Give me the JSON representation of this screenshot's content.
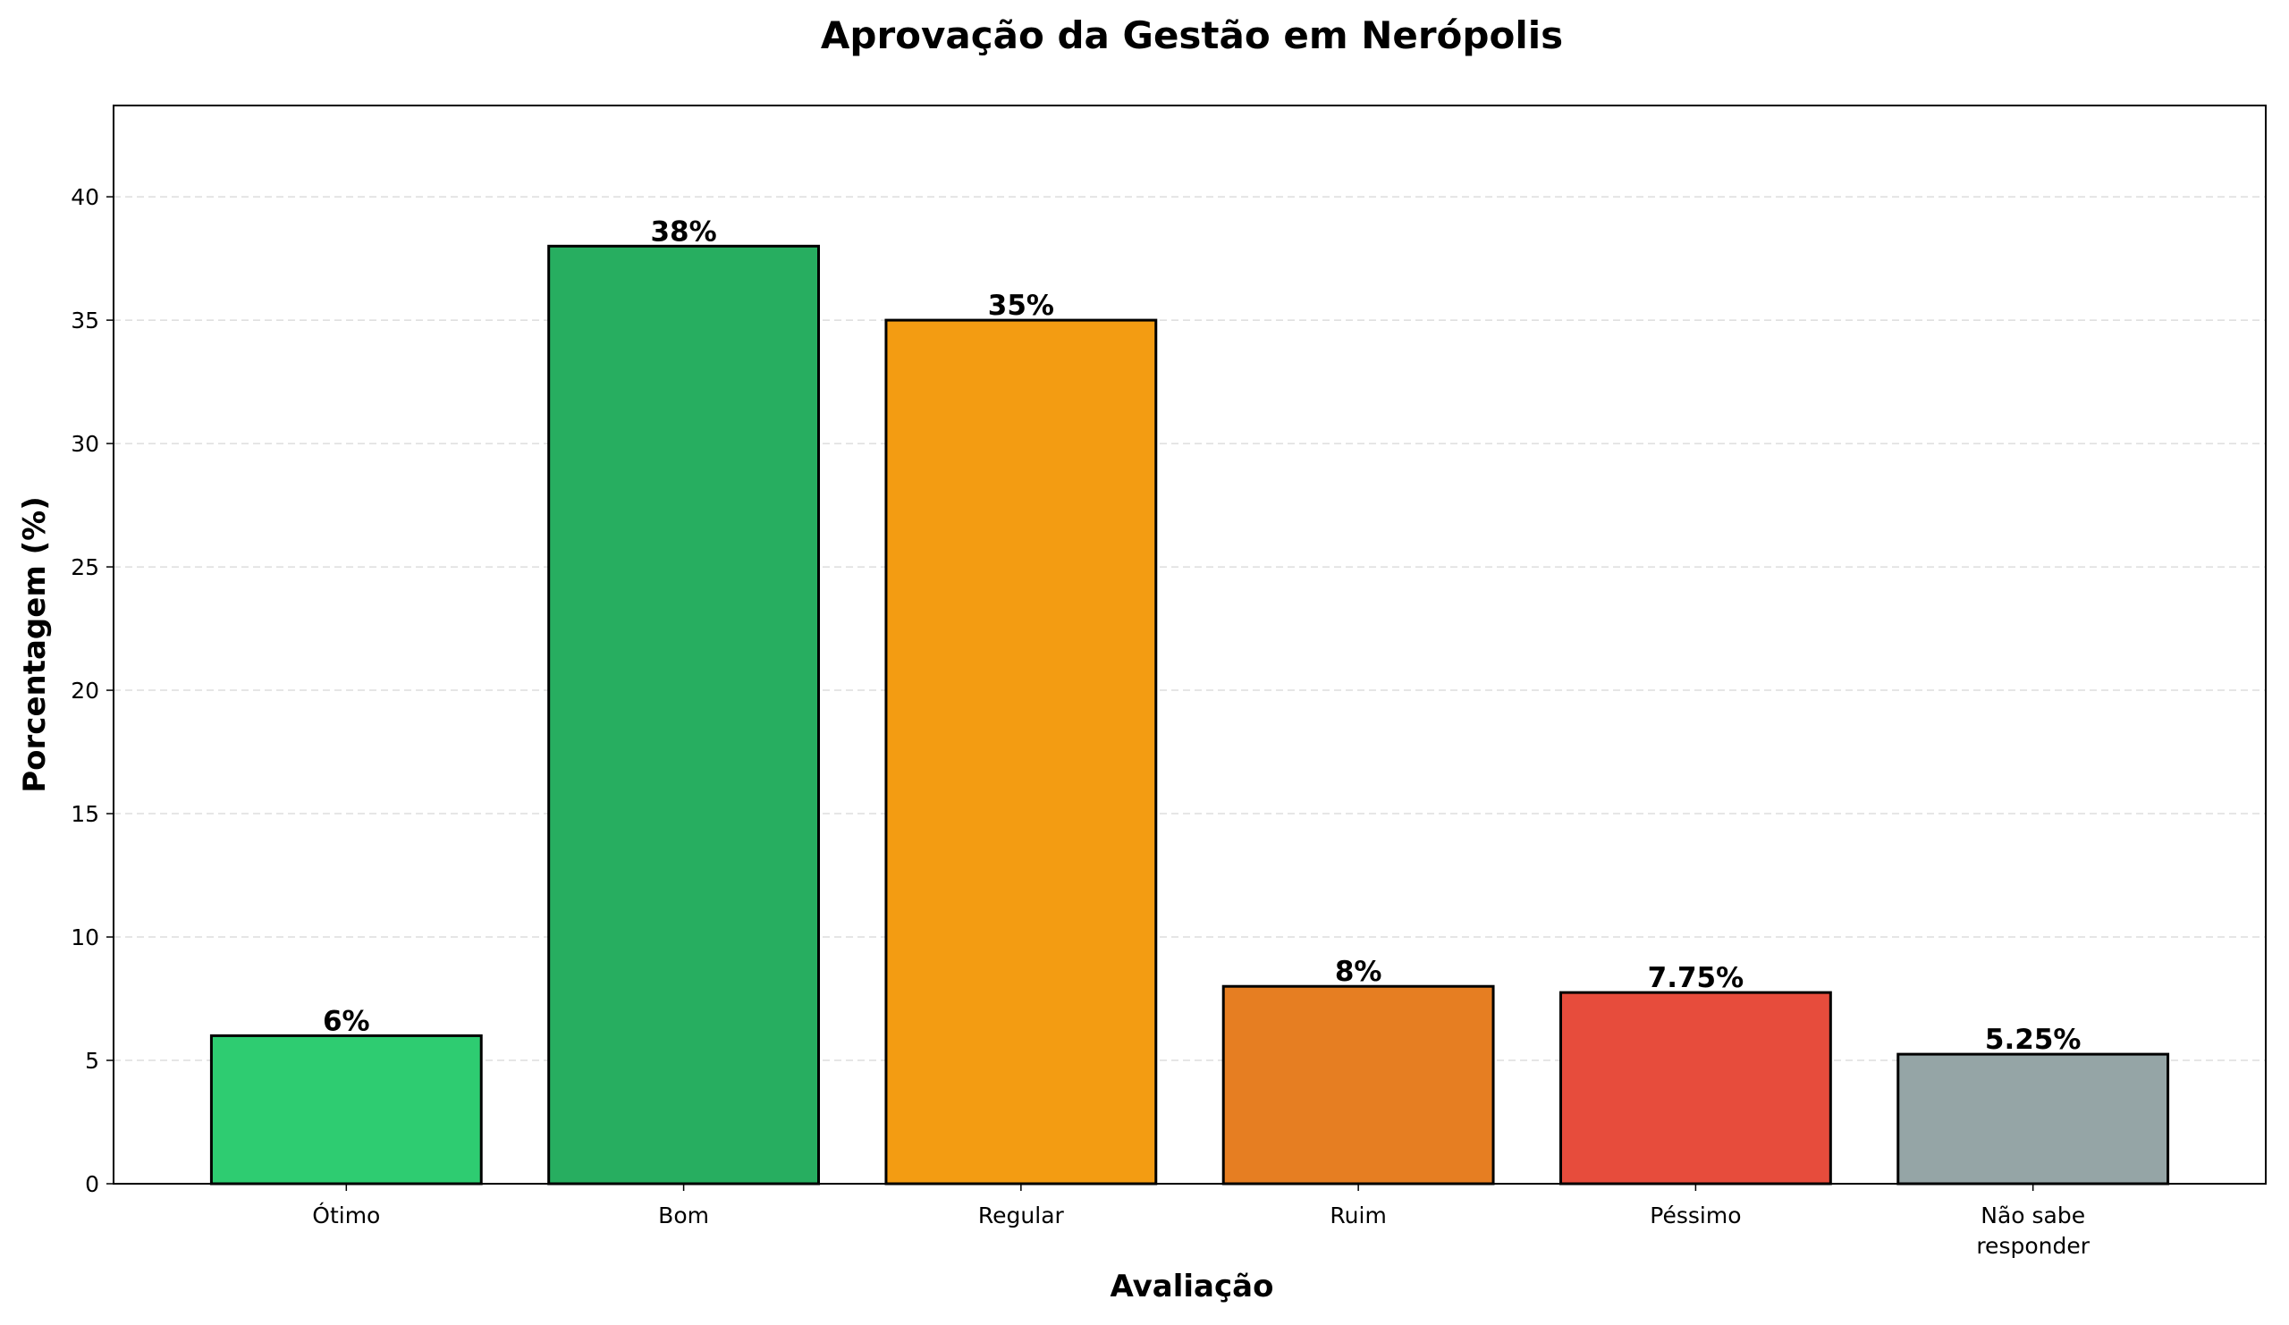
{
  "chart_data": {
    "type": "bar",
    "title": "Aprovação da Gestão em Nerópolis",
    "xlabel": "Avaliação",
    "ylabel": "Porcentagem (%)",
    "categories": [
      "Ótimo",
      "Bom",
      "Regular",
      "Ruim",
      "Péssimo",
      "Não sabe\nresponder"
    ],
    "values": [
      6,
      38,
      35,
      8,
      7.75,
      5.25
    ],
    "data_labels": [
      "6%",
      "38%",
      "35%",
      "8%",
      "7.75%",
      "5.25%"
    ],
    "colors": [
      "#2ecc71",
      "#27ae60",
      "#f39c12",
      "#e67e22",
      "#e74c3c",
      "#95a5a6"
    ],
    "ylim": [
      0,
      43.7
    ],
    "yticks": [
      0,
      5,
      10,
      15,
      20,
      25,
      30,
      35,
      40
    ],
    "grid": "y dashed",
    "legend": "none"
  }
}
